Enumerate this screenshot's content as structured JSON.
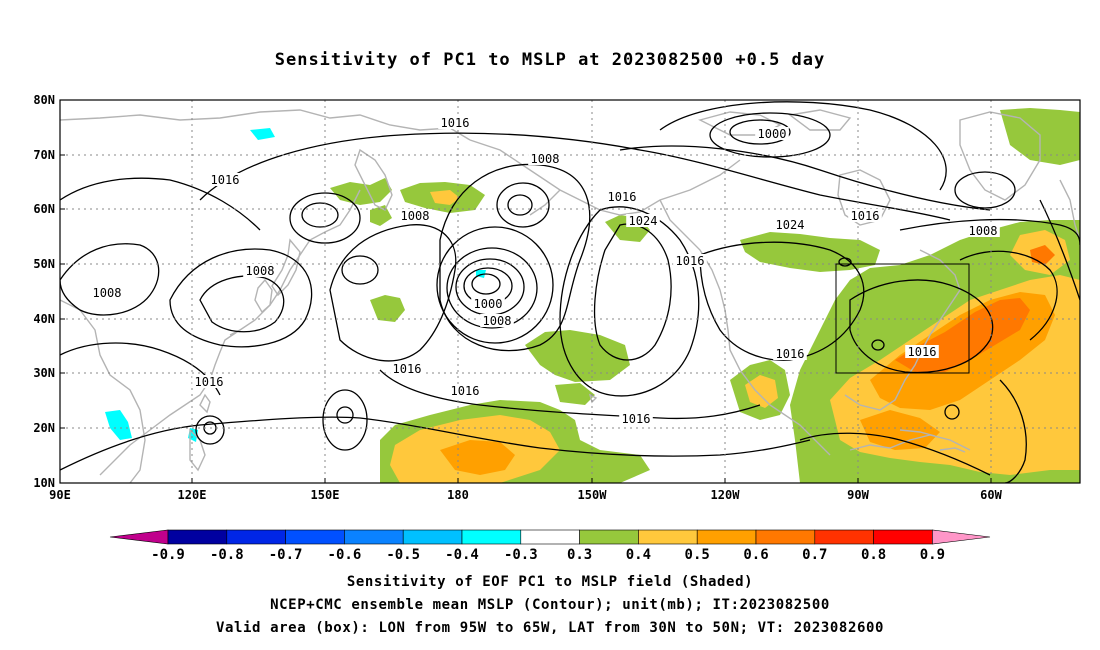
{
  "title": "Sensitivity of PC1 to MSLP at 2023082500 +0.5 day",
  "lat_labels": [
    "80N",
    "70N",
    "60N",
    "50N",
    "40N",
    "30N",
    "20N",
    "10N"
  ],
  "lon_labels": [
    "90E",
    "120E",
    "150E",
    "180",
    "150W",
    "120W",
    "90W",
    "60W"
  ],
  "contour_labels": [
    "1016",
    "1008",
    "1016",
    "1008",
    "1008",
    "1008",
    "1016",
    "1016",
    "1016",
    "1024",
    "1000",
    "1008",
    "1016",
    "1016",
    "1016",
    "1016",
    "1024",
    "1016",
    "1000",
    "1008",
    "1016",
    "1016"
  ],
  "colorbar": {
    "colors": [
      "#c0008c",
      "#0000a0",
      "#0026e6",
      "#0050ff",
      "#0a82ff",
      "#00c0ff",
      "#00ffff",
      "#ffffff",
      "#96c83c",
      "#ffc83c",
      "#ffa000",
      "#ff7800",
      "#ff3200",
      "#ff0000",
      "#ff96c8"
    ],
    "labels": [
      "-0.9",
      "-0.8",
      "-0.7",
      "-0.6",
      "-0.5",
      "-0.4",
      "-0.3",
      "0.3",
      "0.4",
      "0.5",
      "0.6",
      "0.7",
      "0.8",
      "0.9"
    ]
  },
  "captions": {
    "line1": "Sensitivity of EOF PC1 to MSLP field (Shaded)",
    "line2": "NCEP+CMC ensemble mean MSLP (Contour); unit(mb); IT:2023082500",
    "line3": "Valid area (box): LON from 95W to 65W, LAT from 30N to 50N; VT: 2023082600"
  },
  "map": {
    "lon_range": [
      90,
      320
    ],
    "lat_range": [
      10,
      80
    ],
    "valid_box": {
      "lon": [
        265,
        295
      ],
      "lat": [
        30,
        50
      ]
    },
    "colors": {
      "green": "#96c83c",
      "yellow": "#ffc83c",
      "orange": "#ffa000",
      "darkorange": "#ff7800",
      "cyan": "#00ffff",
      "coast": "#b4b4b4"
    }
  }
}
